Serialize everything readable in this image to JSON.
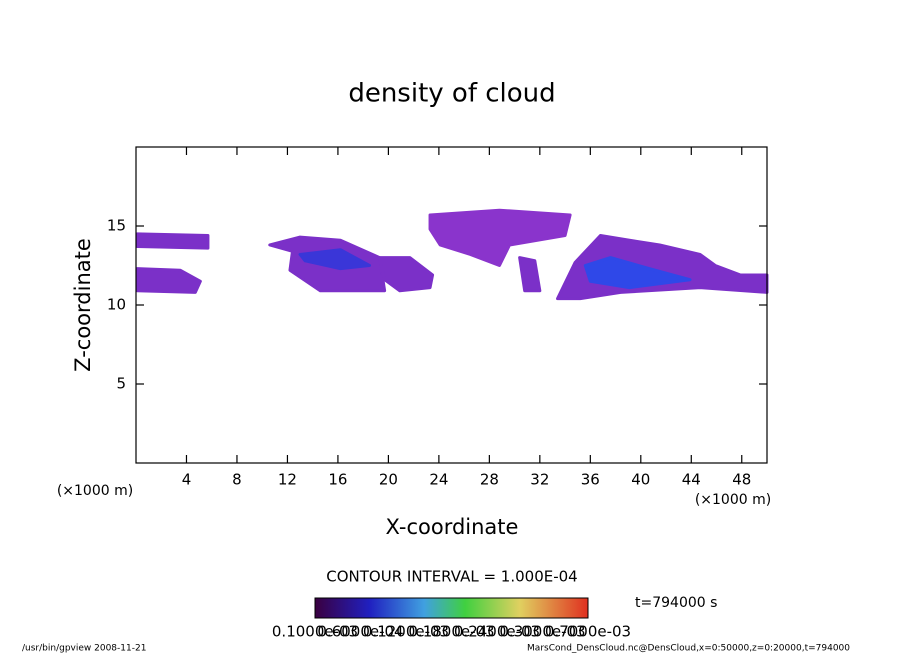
{
  "chart_data": {
    "type": "contour",
    "title": "density of cloud",
    "xlabel": "X-coordinate",
    "ylabel": "Z-coordinate",
    "xunit": "(×1000 m)",
    "yunit": "(×1000 m)",
    "xlim": [
      0,
      50
    ],
    "ylim": [
      0,
      20
    ],
    "xticks": [
      4,
      8,
      12,
      16,
      20,
      24,
      28,
      32,
      36,
      40,
      44,
      48
    ],
    "yticks": [
      5,
      10,
      15
    ],
    "regions": [
      {
        "color": "#7b30c8",
        "x": [
          0.1,
          5.7,
          5.7,
          0.1
        ],
        "y": [
          14.5,
          14.4,
          13.6,
          13.7
        ]
      },
      {
        "color": "#7b30c8",
        "x": [
          0.1,
          3.5,
          5.1,
          4.7,
          0.1
        ],
        "y": [
          12.3,
          12.2,
          11.5,
          10.8,
          10.9
        ]
      },
      {
        "color": "#7b30c8",
        "x": [
          10.6,
          13.0,
          16.2,
          19.3,
          19.7,
          14.6,
          12.2,
          12.4
        ],
        "y": [
          13.8,
          14.3,
          14.1,
          13.0,
          10.9,
          10.9,
          12.2,
          13.4
        ]
      },
      {
        "color": "#7b30c8",
        "x": [
          19.3,
          21.7,
          23.5,
          23.3,
          20.9,
          19.7
        ],
        "y": [
          13.0,
          13.0,
          11.9,
          11.1,
          10.9,
          11.6
        ]
      },
      {
        "color": "#8a34cc",
        "x": [
          23.3,
          28.8,
          34.4,
          34.0,
          29.6,
          28.8,
          26.5,
          24.1,
          23.3
        ],
        "y": [
          15.7,
          16.0,
          15.7,
          14.4,
          13.8,
          12.5,
          13.2,
          13.8,
          14.8
        ]
      },
      {
        "color": "#7b30c8",
        "x": [
          30.4,
          31.6,
          32.0,
          30.8
        ],
        "y": [
          13.0,
          12.8,
          10.9,
          10.9
        ]
      },
      {
        "color": "#7b30c8",
        "x": [
          33.4,
          34.8,
          36.8,
          39.1,
          41.5,
          44.7,
          45.9,
          47.9,
          50,
          50,
          44.7,
          38.4,
          35.2
        ],
        "y": [
          10.4,
          12.7,
          14.4,
          14.1,
          13.8,
          13.2,
          12.5,
          11.9,
          11.9,
          10.8,
          11.1,
          10.8,
          10.4
        ]
      },
      {
        "color": "#3a36d8",
        "x": [
          13.0,
          16.2,
          18.5,
          16.2,
          13.4
        ],
        "y": [
          13.2,
          13.5,
          12.5,
          12.3,
          12.8
        ]
      },
      {
        "color": "#2f48e8",
        "x": [
          35.6,
          37.6,
          40.7,
          43.9,
          39.1,
          36.0
        ],
        "y": [
          12.5,
          13.0,
          12.3,
          11.6,
          11.1,
          11.5
        ]
      }
    ],
    "contour_interval": "CONTOUR INTERVAL = 1.000E-04",
    "colorbar_labels": [
      "0.1000e-03",
      "0.6000e-04",
      "0.1200e-03",
      "0.1800e-03",
      "0.2400e-03",
      "0.3000e-03",
      "0.7000e-03"
    ],
    "time_label": "t=794000 s",
    "footer_left": "/usr/bin/gpview  2008-11-21",
    "footer_right": "MarsCond_DensCloud.nc@DensCloud,x=0:50000,z=0:20000,t=794000"
  }
}
